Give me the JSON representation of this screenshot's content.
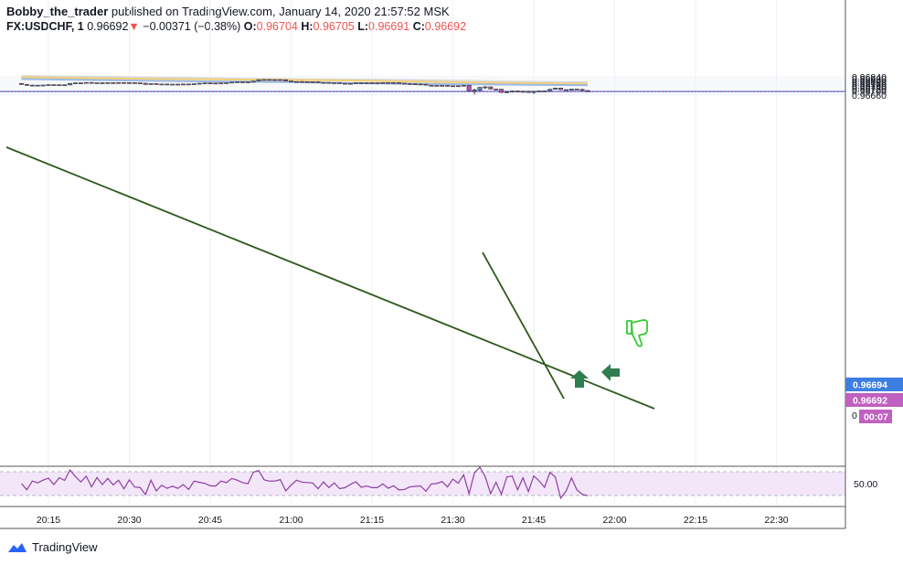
{
  "header": {
    "author": "Bobby_the_trader",
    "published_text": "published on TradingView.com, January 14, 2020 21:57:52 MSK",
    "symbol": "FX:USDCHF, 1",
    "last": "0.96692",
    "change_arrow": "▼",
    "change": "−0.00371 (−0.38%)",
    "o_label": "O:",
    "o_value": "0.96704",
    "h_label": "H:",
    "h_value": "0.96705",
    "l_label": "L:",
    "l_value": "0.96691",
    "c_label": "C:",
    "c_value": "0.96692"
  },
  "price_labels": {
    "current_blue": "0.96694",
    "current_pink": "0.96692",
    "countdown": "00:07",
    "partial_zero": "0"
  },
  "footer": {
    "brand": "TradingView",
    "logo_icon": "tradingview-logo-icon"
  },
  "colors": {
    "up": "#5b7ec9",
    "down": "#b54db5",
    "ma_gray": "#d9d9d9",
    "ma_yellow": "#f0cf78",
    "ma_blue": "#9bb9e6",
    "trendline": "#2e5a1c",
    "arrow": "#2e7d4f",
    "thumb": "#33cc33",
    "rsi": "#8e3fa3",
    "rsi_bg": "#f3e6f8"
  },
  "chart_data": {
    "type": "candlestick",
    "y_ticks": [
      "0.96840",
      "0.96820",
      "0.96800",
      "0.96780",
      "0.96760",
      "0.96740",
      "0.96720",
      "0.96700",
      "0.96660"
    ],
    "x_ticks": [
      "20:15",
      "20:30",
      "20:45",
      "21:00",
      "21:15",
      "21:30",
      "21:45",
      "22:00",
      "22:15",
      "22:30"
    ],
    "rsi_ticks": [
      "50.00"
    ],
    "rsi_level": 50,
    "current_price": 0.96692,
    "bid_price": 0.96694,
    "annotations": [
      "up-arrow",
      "left-arrow",
      "thumbs-down"
    ],
    "candles": [
      {
        "t": "20:10",
        "o": 0.96774,
        "h": 0.96775,
        "l": 0.9676,
        "c": 0.96764
      },
      {
        "t": "20:11",
        "o": 0.96764,
        "h": 0.96766,
        "l": 0.96749,
        "c": 0.96755
      },
      {
        "t": "20:12",
        "o": 0.96755,
        "h": 0.96762,
        "l": 0.96752,
        "c": 0.96757
      },
      {
        "t": "20:13",
        "o": 0.96757,
        "h": 0.96759,
        "l": 0.96754,
        "c": 0.96756
      },
      {
        "t": "20:14",
        "o": 0.96756,
        "h": 0.9676,
        "l": 0.96749,
        "c": 0.96758
      },
      {
        "t": "20:15",
        "o": 0.96758,
        "h": 0.96764,
        "l": 0.96756,
        "c": 0.96762
      },
      {
        "t": "20:16",
        "o": 0.96762,
        "h": 0.96763,
        "l": 0.96755,
        "c": 0.96757
      },
      {
        "t": "20:17",
        "o": 0.96756,
        "h": 0.96762,
        "l": 0.96755,
        "c": 0.96761
      },
      {
        "t": "20:18",
        "o": 0.96758,
        "h": 0.96762,
        "l": 0.96755,
        "c": 0.96761
      },
      {
        "t": "20:19",
        "o": 0.96759,
        "h": 0.96777,
        "l": 0.96757,
        "c": 0.96775
      },
      {
        "t": "20:20",
        "o": 0.96775,
        "h": 0.96782,
        "l": 0.96773,
        "c": 0.9678
      },
      {
        "t": "20:21",
        "o": 0.9678,
        "h": 0.96783,
        "l": 0.96776,
        "c": 0.96778
      },
      {
        "t": "20:22",
        "o": 0.96778,
        "h": 0.96785,
        "l": 0.96777,
        "c": 0.96784
      },
      {
        "t": "20:23",
        "o": 0.96784,
        "h": 0.96785,
        "l": 0.96775,
        "c": 0.96776
      },
      {
        "t": "20:24",
        "o": 0.96776,
        "h": 0.96782,
        "l": 0.96774,
        "c": 0.96781
      },
      {
        "t": "20:25",
        "o": 0.96781,
        "h": 0.96783,
        "l": 0.96776,
        "c": 0.96777
      },
      {
        "t": "20:26",
        "o": 0.96777,
        "h": 0.96783,
        "l": 0.96776,
        "c": 0.96782
      },
      {
        "t": "20:27",
        "o": 0.96782,
        "h": 0.96783,
        "l": 0.96778,
        "c": 0.96779
      },
      {
        "t": "20:28",
        "o": 0.96779,
        "h": 0.96784,
        "l": 0.96778,
        "c": 0.96783
      },
      {
        "t": "20:29",
        "o": 0.96783,
        "h": 0.96784,
        "l": 0.96775,
        "c": 0.96776
      },
      {
        "t": "20:30",
        "o": 0.96776,
        "h": 0.96783,
        "l": 0.96775,
        "c": 0.96782
      },
      {
        "t": "20:31",
        "o": 0.96782,
        "h": 0.96783,
        "l": 0.96777,
        "c": 0.96779
      },
      {
        "t": "20:32",
        "o": 0.96779,
        "h": 0.96782,
        "l": 0.96775,
        "c": 0.96776
      },
      {
        "t": "20:33",
        "o": 0.96776,
        "h": 0.96778,
        "l": 0.96762,
        "c": 0.96764
      },
      {
        "t": "20:34",
        "o": 0.96764,
        "h": 0.96774,
        "l": 0.96762,
        "c": 0.96772
      },
      {
        "t": "20:35",
        "o": 0.96772,
        "h": 0.96774,
        "l": 0.96764,
        "c": 0.96766
      },
      {
        "t": "20:36",
        "o": 0.96766,
        "h": 0.9677,
        "l": 0.96764,
        "c": 0.96768
      },
      {
        "t": "20:37",
        "o": 0.96768,
        "h": 0.96771,
        "l": 0.96765,
        "c": 0.96766
      },
      {
        "t": "20:38",
        "o": 0.96766,
        "h": 0.96769,
        "l": 0.96764,
        "c": 0.96767
      },
      {
        "t": "20:39",
        "o": 0.96767,
        "h": 0.96769,
        "l": 0.96764,
        "c": 0.96765
      },
      {
        "t": "20:40",
        "o": 0.96765,
        "h": 0.9677,
        "l": 0.96762,
        "c": 0.96768
      },
      {
        "t": "20:41",
        "o": 0.96768,
        "h": 0.9677,
        "l": 0.96762,
        "c": 0.96764
      },
      {
        "t": "20:42",
        "o": 0.96764,
        "h": 0.96772,
        "l": 0.96762,
        "c": 0.96771
      },
      {
        "t": "20:43",
        "o": 0.96771,
        "h": 0.96778,
        "l": 0.96769,
        "c": 0.96776
      },
      {
        "t": "20:44",
        "o": 0.96776,
        "h": 0.9678,
        "l": 0.96774,
        "c": 0.96779
      },
      {
        "t": "20:45",
        "o": 0.96779,
        "h": 0.96781,
        "l": 0.96776,
        "c": 0.96778
      },
      {
        "t": "20:46",
        "o": 0.96778,
        "h": 0.9678,
        "l": 0.96775,
        "c": 0.96776
      },
      {
        "t": "20:47",
        "o": 0.96776,
        "h": 0.96781,
        "l": 0.96773,
        "c": 0.9678
      },
      {
        "t": "20:48",
        "o": 0.9678,
        "h": 0.96782,
        "l": 0.96777,
        "c": 0.96781
      },
      {
        "t": "20:49",
        "o": 0.96781,
        "h": 0.96788,
        "l": 0.96779,
        "c": 0.96787
      },
      {
        "t": "20:50",
        "o": 0.96787,
        "h": 0.96792,
        "l": 0.96784,
        "c": 0.9679
      },
      {
        "t": "20:51",
        "o": 0.9679,
        "h": 0.96793,
        "l": 0.96786,
        "c": 0.96789
      },
      {
        "t": "20:52",
        "o": 0.96789,
        "h": 0.96792,
        "l": 0.96785,
        "c": 0.96786
      },
      {
        "t": "20:53",
        "o": 0.96786,
        "h": 0.968,
        "l": 0.96784,
        "c": 0.96798
      },
      {
        "t": "20:54",
        "o": 0.96798,
        "h": 0.96814,
        "l": 0.96796,
        "c": 0.96812
      },
      {
        "t": "20:55",
        "o": 0.96812,
        "h": 0.96815,
        "l": 0.96808,
        "c": 0.96813
      },
      {
        "t": "20:56",
        "o": 0.96813,
        "h": 0.96816,
        "l": 0.96809,
        "c": 0.96812
      },
      {
        "t": "20:57",
        "o": 0.96812,
        "h": 0.96814,
        "l": 0.9681,
        "c": 0.96811
      },
      {
        "t": "20:58",
        "o": 0.96811,
        "h": 0.96813,
        "l": 0.96808,
        "c": 0.96812
      },
      {
        "t": "20:59",
        "o": 0.96811,
        "h": 0.96812,
        "l": 0.96796,
        "c": 0.96798
      },
      {
        "t": "21:00",
        "o": 0.96798,
        "h": 0.968,
        "l": 0.9679,
        "c": 0.96792
      },
      {
        "t": "21:01",
        "o": 0.96792,
        "h": 0.96795,
        "l": 0.96789,
        "c": 0.96793
      },
      {
        "t": "21:02",
        "o": 0.96793,
        "h": 0.96795,
        "l": 0.9679,
        "c": 0.96792
      },
      {
        "t": "21:03",
        "o": 0.96792,
        "h": 0.96794,
        "l": 0.96789,
        "c": 0.96791
      },
      {
        "t": "21:04",
        "o": 0.96791,
        "h": 0.96793,
        "l": 0.96788,
        "c": 0.9679
      },
      {
        "t": "21:05",
        "o": 0.9679,
        "h": 0.96792,
        "l": 0.9678,
        "c": 0.96782
      },
      {
        "t": "21:06",
        "o": 0.96782,
        "h": 0.96785,
        "l": 0.96779,
        "c": 0.96784
      },
      {
        "t": "21:07",
        "o": 0.96784,
        "h": 0.96785,
        "l": 0.96778,
        "c": 0.96779
      },
      {
        "t": "21:08",
        "o": 0.96779,
        "h": 0.96782,
        "l": 0.96777,
        "c": 0.96781
      },
      {
        "t": "21:09",
        "o": 0.96781,
        "h": 0.96782,
        "l": 0.96775,
        "c": 0.96776
      },
      {
        "t": "21:10",
        "o": 0.96776,
        "h": 0.96778,
        "l": 0.96771,
        "c": 0.96773
      },
      {
        "t": "21:11",
        "o": 0.96773,
        "h": 0.96776,
        "l": 0.9677,
        "c": 0.96775
      },
      {
        "t": "21:12",
        "o": 0.96773,
        "h": 0.96782,
        "l": 0.96772,
        "c": 0.96781
      },
      {
        "t": "21:13",
        "o": 0.96781,
        "h": 0.96783,
        "l": 0.96778,
        "c": 0.9678
      },
      {
        "t": "21:14",
        "o": 0.9678,
        "h": 0.96782,
        "l": 0.96777,
        "c": 0.96781
      },
      {
        "t": "21:15",
        "o": 0.96781,
        "h": 0.96783,
        "l": 0.96778,
        "c": 0.9678
      },
      {
        "t": "21:16",
        "o": 0.9678,
        "h": 0.96782,
        "l": 0.96778,
        "c": 0.96779
      },
      {
        "t": "21:17",
        "o": 0.96779,
        "h": 0.96784,
        "l": 0.96778,
        "c": 0.96783
      },
      {
        "t": "21:18",
        "o": 0.96783,
        "h": 0.96784,
        "l": 0.96774,
        "c": 0.96781
      },
      {
        "t": "21:19",
        "o": 0.96781,
        "h": 0.96784,
        "l": 0.96779,
        "c": 0.96782
      },
      {
        "t": "21:20",
        "o": 0.96782,
        "h": 0.96783,
        "l": 0.96776,
        "c": 0.96777
      },
      {
        "t": "21:21",
        "o": 0.96777,
        "h": 0.96779,
        "l": 0.9677,
        "c": 0.96772
      },
      {
        "t": "21:22",
        "o": 0.96772,
        "h": 0.96774,
        "l": 0.96767,
        "c": 0.9677
      },
      {
        "t": "21:23",
        "o": 0.9677,
        "h": 0.96772,
        "l": 0.96766,
        "c": 0.96768
      },
      {
        "t": "21:24",
        "o": 0.96768,
        "h": 0.9677,
        "l": 0.96764,
        "c": 0.96766
      },
      {
        "t": "21:25",
        "o": 0.96766,
        "h": 0.96768,
        "l": 0.96754,
        "c": 0.96756
      },
      {
        "t": "21:26",
        "o": 0.96756,
        "h": 0.96758,
        "l": 0.96753,
        "c": 0.96755
      },
      {
        "t": "21:27",
        "o": 0.96755,
        "h": 0.96757,
        "l": 0.96753,
        "c": 0.96754
      },
      {
        "t": "21:28",
        "o": 0.96754,
        "h": 0.96756,
        "l": 0.96752,
        "c": 0.96755
      },
      {
        "t": "21:29",
        "o": 0.96755,
        "h": 0.96756,
        "l": 0.96746,
        "c": 0.96748
      },
      {
        "t": "21:30",
        "o": 0.96748,
        "h": 0.96753,
        "l": 0.96746,
        "c": 0.96751
      },
      {
        "t": "21:31",
        "o": 0.96751,
        "h": 0.96755,
        "l": 0.96745,
        "c": 0.96748
      },
      {
        "t": "21:32",
        "o": 0.96748,
        "h": 0.96757,
        "l": 0.96747,
        "c": 0.96756
      },
      {
        "t": "21:33",
        "o": 0.96756,
        "h": 0.96757,
        "l": 0.96694,
        "c": 0.967
      },
      {
        "t": "21:34",
        "o": 0.967,
        "h": 0.9672,
        "l": 0.96666,
        "c": 0.9671
      },
      {
        "t": "21:35",
        "o": 0.96705,
        "h": 0.96738,
        "l": 0.96696,
        "c": 0.96735
      },
      {
        "t": "21:36",
        "o": 0.96735,
        "h": 0.96746,
        "l": 0.9672,
        "c": 0.9674
      },
      {
        "t": "21:37",
        "o": 0.9674,
        "h": 0.96742,
        "l": 0.96715,
        "c": 0.96718
      },
      {
        "t": "21:38",
        "o": 0.96718,
        "h": 0.96722,
        "l": 0.9671,
        "c": 0.96716
      },
      {
        "t": "21:39",
        "o": 0.96716,
        "h": 0.9672,
        "l": 0.9668,
        "c": 0.96684
      },
      {
        "t": "21:40",
        "o": 0.96684,
        "h": 0.967,
        "l": 0.96682,
        "c": 0.9669
      },
      {
        "t": "21:41",
        "o": 0.9669,
        "h": 0.96703,
        "l": 0.96682,
        "c": 0.96698
      },
      {
        "t": "21:42",
        "o": 0.96698,
        "h": 0.96702,
        "l": 0.96685,
        "c": 0.96688
      },
      {
        "t": "21:43",
        "o": 0.96688,
        "h": 0.96701,
        "l": 0.96683,
        "c": 0.96695
      },
      {
        "t": "21:44",
        "o": 0.96695,
        "h": 0.96702,
        "l": 0.9668,
        "c": 0.96684
      },
      {
        "t": "21:45",
        "o": 0.96684,
        "h": 0.967,
        "l": 0.9667,
        "c": 0.96695
      },
      {
        "t": "21:46",
        "o": 0.96695,
        "h": 0.96704,
        "l": 0.9669,
        "c": 0.967
      },
      {
        "t": "21:47",
        "o": 0.967,
        "h": 0.96705,
        "l": 0.96694,
        "c": 0.96697
      },
      {
        "t": "21:48",
        "o": 0.96697,
        "h": 0.9672,
        "l": 0.96696,
        "c": 0.96716
      },
      {
        "t": "21:49",
        "o": 0.96716,
        "h": 0.9673,
        "l": 0.96714,
        "c": 0.96728
      },
      {
        "t": "21:50",
        "o": 0.96728,
        "h": 0.96729,
        "l": 0.9671,
        "c": 0.96712
      },
      {
        "t": "21:51",
        "o": 0.96712,
        "h": 0.96714,
        "l": 0.967,
        "c": 0.96706
      },
      {
        "t": "21:52",
        "o": 0.96706,
        "h": 0.9672,
        "l": 0.96704,
        "c": 0.96718
      },
      {
        "t": "21:53",
        "o": 0.96718,
        "h": 0.9672,
        "l": 0.9671,
        "c": 0.96714
      },
      {
        "t": "21:54",
        "o": 0.96714,
        "h": 0.96722,
        "l": 0.967,
        "c": 0.96704
      },
      {
        "t": "21:55",
        "o": 0.96704,
        "h": 0.96705,
        "l": 0.96691,
        "c": 0.96692
      }
    ]
  }
}
